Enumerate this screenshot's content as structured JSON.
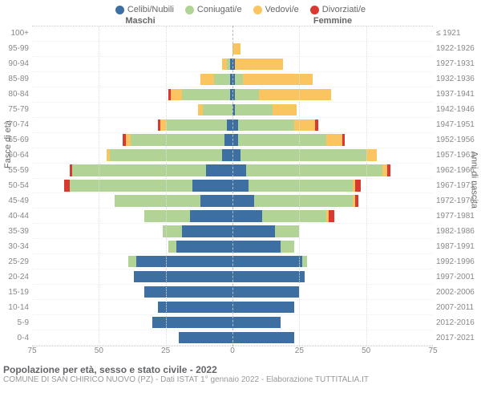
{
  "type": "population-pyramid",
  "legend": [
    {
      "label": "Celibi/Nubili",
      "color": "#3e6fa3"
    },
    {
      "label": "Coniugati/e",
      "color": "#b2d396"
    },
    {
      "label": "Vedovi/e",
      "color": "#fac561"
    },
    {
      "label": "Divorziati/e",
      "color": "#d83a30"
    }
  ],
  "header_left": "Maschi",
  "header_right": "Femmine",
  "left_axis_years": "≤ 1921",
  "y_title_left": "Fasce di età",
  "y_title_right": "Anni di nascita",
  "x_ticks": [
    75,
    50,
    25,
    0,
    25,
    50,
    75
  ],
  "x_max": 75,
  "age_labels": [
    "100+",
    "95-99",
    "90-94",
    "85-89",
    "80-84",
    "75-79",
    "70-74",
    "65-69",
    "60-64",
    "55-59",
    "50-54",
    "45-49",
    "40-44",
    "35-39",
    "30-34",
    "25-29",
    "20-24",
    "15-19",
    "10-14",
    "5-9",
    "0-4"
  ],
  "year_labels": [
    "≤ 1921",
    "1922-1926",
    "1927-1931",
    "1932-1936",
    "1937-1941",
    "1942-1946",
    "1947-1951",
    "1952-1956",
    "1957-1961",
    "1962-1966",
    "1967-1971",
    "1972-1976",
    "1977-1981",
    "1982-1986",
    "1987-1991",
    "1992-1996",
    "1997-2001",
    "2002-2006",
    "2007-2011",
    "2012-2016",
    "2017-2021"
  ],
  "male": [
    {
      "c": 0,
      "m": 0,
      "w": 0,
      "d": 0
    },
    {
      "c": 0,
      "m": 0,
      "w": 0,
      "d": 0
    },
    {
      "c": 1,
      "m": 1,
      "w": 2,
      "d": 0
    },
    {
      "c": 1,
      "m": 6,
      "w": 5,
      "d": 0
    },
    {
      "c": 1,
      "m": 18,
      "w": 4,
      "d": 1
    },
    {
      "c": 0,
      "m": 11,
      "w": 2,
      "d": 0
    },
    {
      "c": 2,
      "m": 23,
      "w": 2,
      "d": 1
    },
    {
      "c": 3,
      "m": 35,
      "w": 2,
      "d": 1
    },
    {
      "c": 4,
      "m": 42,
      "w": 1,
      "d": 0
    },
    {
      "c": 10,
      "m": 50,
      "w": 0,
      "d": 1
    },
    {
      "c": 15,
      "m": 46,
      "w": 0,
      "d": 2
    },
    {
      "c": 12,
      "m": 32,
      "w": 0,
      "d": 0
    },
    {
      "c": 16,
      "m": 17,
      "w": 0,
      "d": 0
    },
    {
      "c": 19,
      "m": 7,
      "w": 0,
      "d": 0
    },
    {
      "c": 21,
      "m": 3,
      "w": 0,
      "d": 0
    },
    {
      "c": 36,
      "m": 3,
      "w": 0,
      "d": 0
    },
    {
      "c": 37,
      "m": 0,
      "w": 0,
      "d": 0
    },
    {
      "c": 33,
      "m": 0,
      "w": 0,
      "d": 0
    },
    {
      "c": 28,
      "m": 0,
      "w": 0,
      "d": 0
    },
    {
      "c": 30,
      "m": 0,
      "w": 0,
      "d": 0
    },
    {
      "c": 20,
      "m": 0,
      "w": 0,
      "d": 0
    }
  ],
  "female": [
    {
      "c": 0,
      "m": 0,
      "w": 0,
      "d": 0
    },
    {
      "c": 0,
      "m": 0,
      "w": 3,
      "d": 0
    },
    {
      "c": 1,
      "m": 0,
      "w": 18,
      "d": 0
    },
    {
      "c": 1,
      "m": 3,
      "w": 26,
      "d": 0
    },
    {
      "c": 1,
      "m": 9,
      "w": 27,
      "d": 0
    },
    {
      "c": 1,
      "m": 14,
      "w": 9,
      "d": 0
    },
    {
      "c": 2,
      "m": 21,
      "w": 8,
      "d": 1
    },
    {
      "c": 2,
      "m": 33,
      "w": 6,
      "d": 1
    },
    {
      "c": 3,
      "m": 47,
      "w": 4,
      "d": 0
    },
    {
      "c": 5,
      "m": 51,
      "w": 2,
      "d": 1
    },
    {
      "c": 6,
      "m": 39,
      "w": 1,
      "d": 2
    },
    {
      "c": 8,
      "m": 37,
      "w": 1,
      "d": 1
    },
    {
      "c": 11,
      "m": 24,
      "w": 1,
      "d": 2
    },
    {
      "c": 16,
      "m": 9,
      "w": 0,
      "d": 0
    },
    {
      "c": 18,
      "m": 5,
      "w": 0,
      "d": 0
    },
    {
      "c": 26,
      "m": 2,
      "w": 0,
      "d": 0
    },
    {
      "c": 27,
      "m": 0,
      "w": 0,
      "d": 0
    },
    {
      "c": 25,
      "m": 0,
      "w": 0,
      "d": 0
    },
    {
      "c": 23,
      "m": 0,
      "w": 0,
      "d": 0
    },
    {
      "c": 18,
      "m": 0,
      "w": 0,
      "d": 0
    },
    {
      "c": 23,
      "m": 0,
      "w": 0,
      "d": 0
    }
  ],
  "grid_color": "#dddddd",
  "background_color": "#ffffff",
  "title": "Popolazione per età, sesso e stato civile - 2022",
  "subtitle": "COMUNE DI SAN CHIRICO NUOVO (PZ) - Dati ISTAT 1° gennaio 2022 - Elaborazione TUTTITALIA.IT",
  "colors": {
    "celibi": "#3e6fa3",
    "coniugati": "#b2d396",
    "vedovi": "#fac561",
    "divorziati": "#d83a30"
  }
}
